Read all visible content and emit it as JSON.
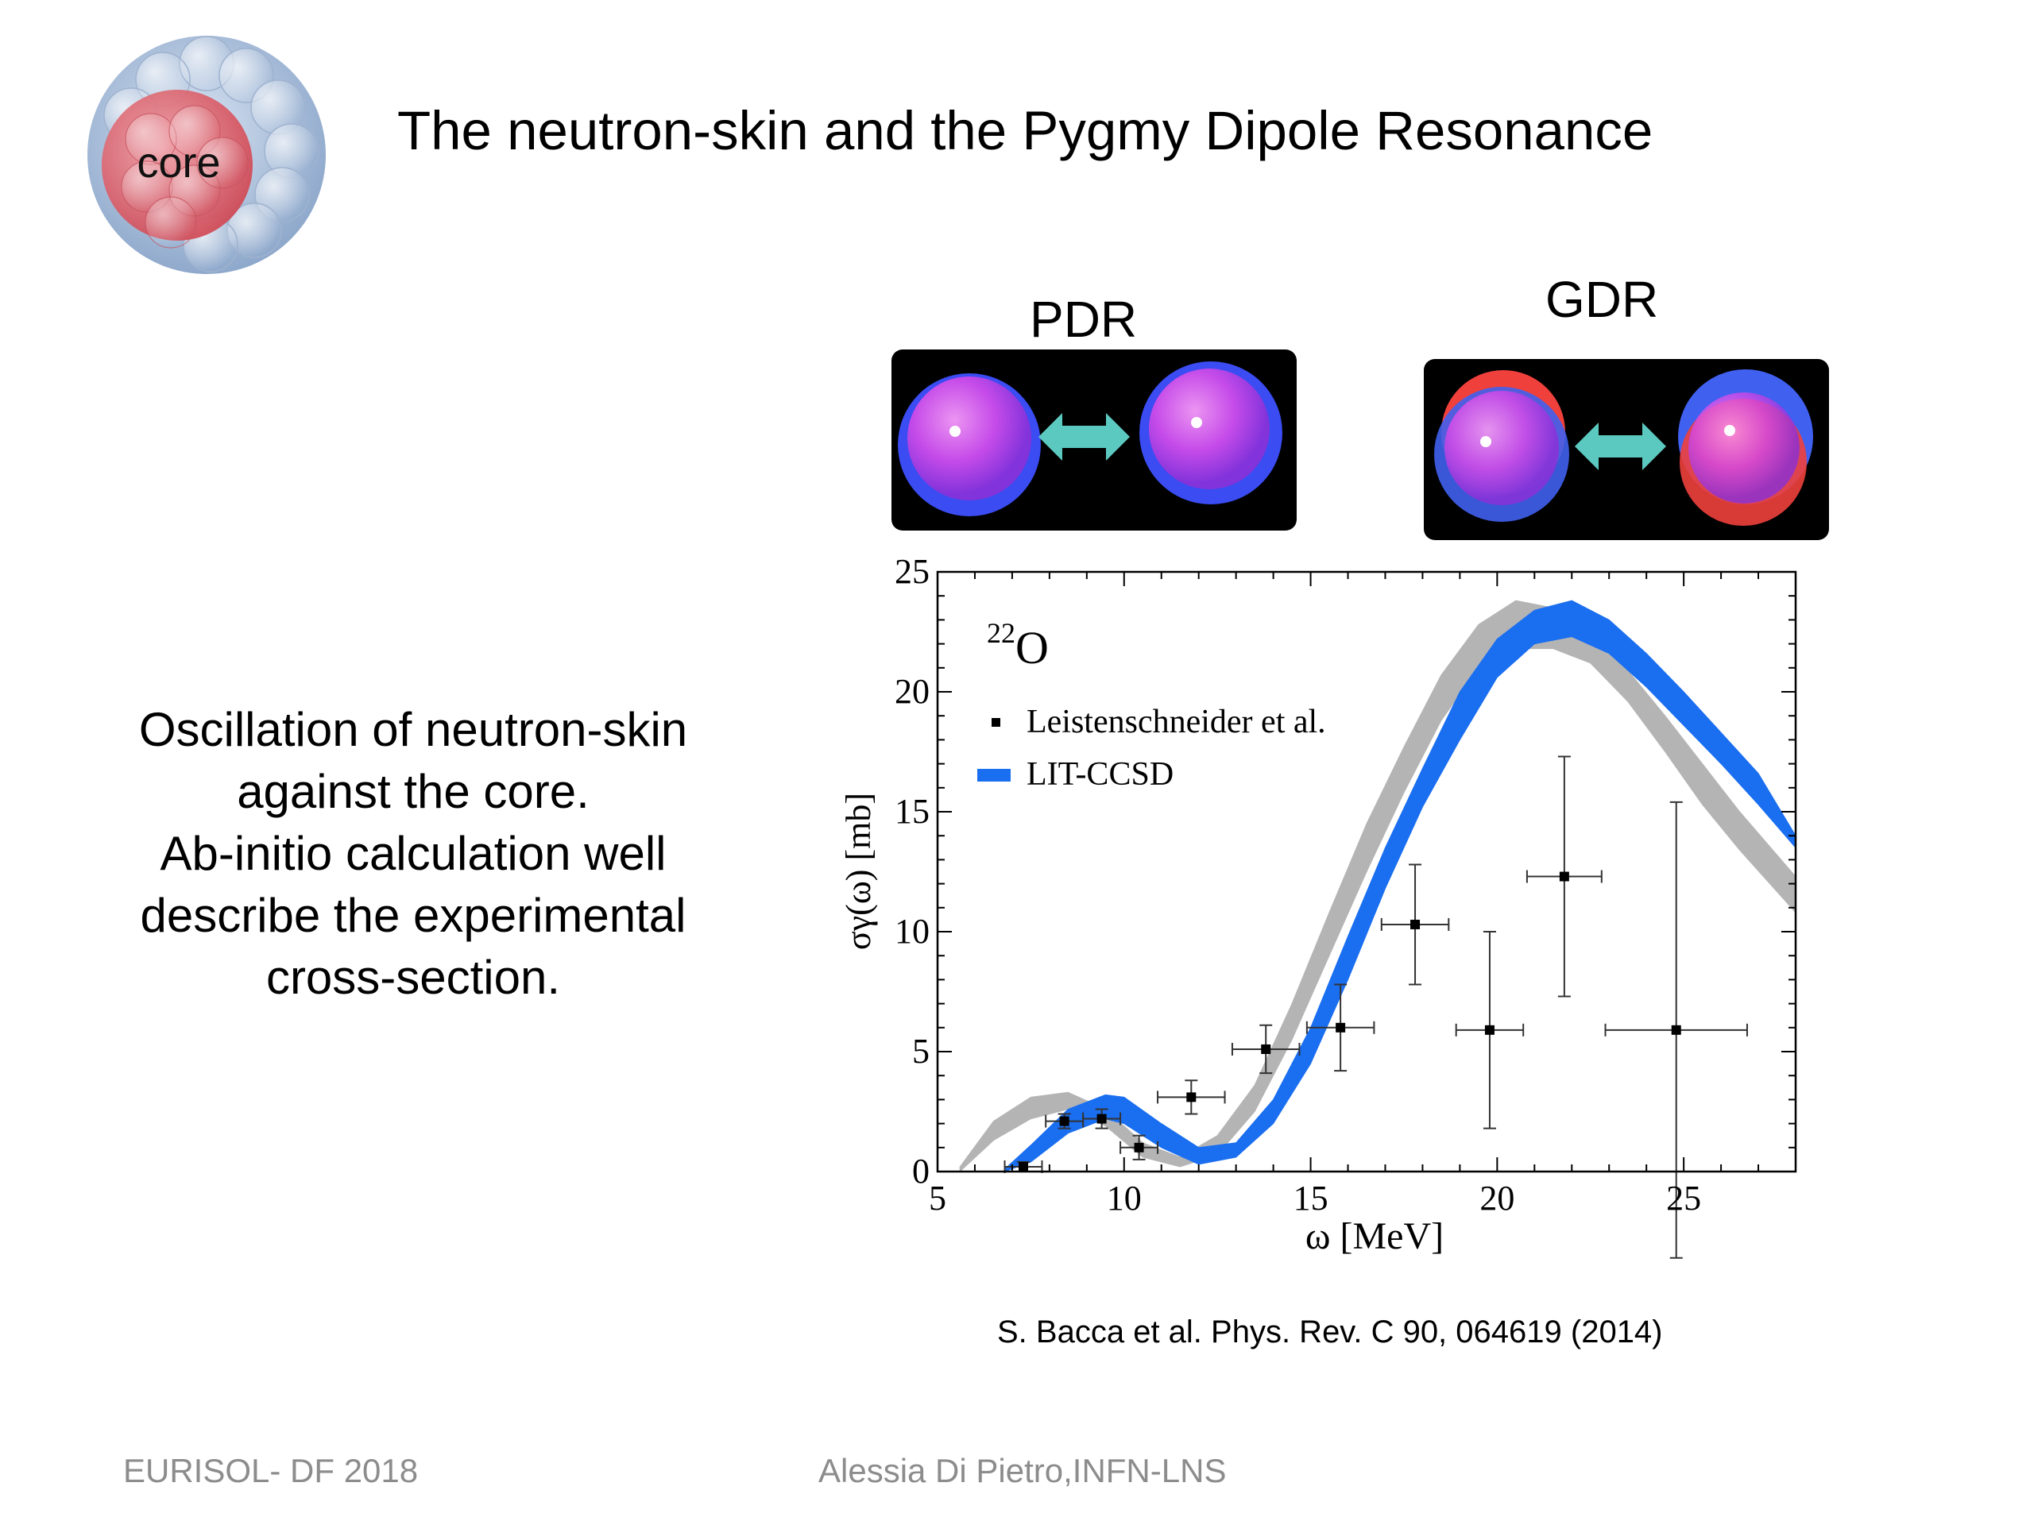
{
  "slide": {
    "title": "The neutron-skin and the Pygmy Dipole Resonance",
    "logo_label": "core",
    "modes": [
      {
        "label": "PDR"
      },
      {
        "label": "GDR"
      }
    ],
    "description_lines": [
      "Oscillation of neutron-skin",
      "against the core.",
      "Ab-initio calculation well",
      "describe the experimental",
      "cross-section."
    ],
    "reference": "S. Bacca et al. Phys. Rev. C 90, 064619 (2014)",
    "footer_left": "EURISOL- DF 2018",
    "footer_center": "Alessia Di Pietro,INFN-LNS"
  },
  "colors": {
    "grey_band": "#b4b4b4",
    "blue_band": "#1a6ef0",
    "arrow": "#5cc9c0",
    "core_red": "#e05a63",
    "skin_blue": "#a9c0dd"
  },
  "chart_data": {
    "type": "line",
    "annotation": "22O",
    "annotation_mass": "22",
    "annotation_element": "O",
    "xlabel": "ω [MeV]",
    "ylabel": "σγ(ω) [mb]",
    "xlim": [
      5,
      28
    ],
    "ylim": [
      0,
      25
    ],
    "xticks": [
      5,
      10,
      15,
      20,
      25
    ],
    "yticks": [
      0,
      5,
      10,
      15,
      20,
      25
    ],
    "legend": [
      {
        "label": "Leistenschneider et al.",
        "kind": "points"
      },
      {
        "label": "LIT-CCSD",
        "kind": "band",
        "color": "#1a6ef0"
      }
    ],
    "legend_position": "top-left",
    "bands": [
      {
        "name": "grey",
        "color": "#b4b4b4",
        "x": [
          5.6,
          6.5,
          7.5,
          8.5,
          9.5,
          10.5,
          11.5,
          12.5,
          13.5,
          14.5,
          15.5,
          16.5,
          17.5,
          18.5,
          19.5,
          20.5,
          21.5,
          22.5,
          23.5,
          24.5,
          25.5,
          26.5,
          28.0
        ],
        "lower": [
          0.0,
          1.3,
          2.2,
          2.6,
          1.9,
          0.6,
          0.2,
          0.7,
          2.5,
          5.5,
          9.0,
          12.5,
          15.8,
          18.8,
          21.0,
          21.8,
          21.8,
          21.2,
          19.6,
          17.5,
          15.3,
          13.4,
          10.8
        ],
        "upper": [
          0.2,
          2.1,
          3.1,
          3.3,
          2.6,
          1.2,
          0.6,
          1.5,
          3.6,
          7.0,
          10.8,
          14.5,
          17.7,
          20.7,
          22.8,
          23.8,
          23.5,
          22.4,
          20.9,
          19.0,
          17.0,
          15.0,
          12.3
        ]
      },
      {
        "name": "LIT-CCSD",
        "color": "#1a6ef0",
        "x": [
          6.8,
          7.5,
          8.5,
          9.5,
          10.0,
          11.0,
          12.0,
          13.0,
          14.0,
          15.0,
          16.0,
          17.0,
          18.0,
          19.0,
          20.0,
          21.0,
          22.0,
          23.0,
          24.0,
          25.0,
          26.0,
          27.0,
          28.0
        ],
        "lower": [
          0.0,
          0.4,
          1.6,
          2.2,
          2.0,
          1.0,
          0.3,
          0.6,
          2.0,
          4.5,
          8.0,
          11.8,
          15.2,
          18.0,
          20.6,
          22.0,
          22.3,
          21.6,
          20.2,
          18.6,
          17.0,
          15.3,
          13.5
        ],
        "upper": [
          0.1,
          1.1,
          2.6,
          3.2,
          3.1,
          2.0,
          1.0,
          1.2,
          3.0,
          6.0,
          9.8,
          13.5,
          16.8,
          20.0,
          22.2,
          23.4,
          23.8,
          23.0,
          21.6,
          20.0,
          18.3,
          16.6,
          14.0
        ]
      }
    ],
    "points": [
      {
        "x": 7.3,
        "y": 0.2,
        "xerr": 0.5,
        "yerr": 0.2
      },
      {
        "x": 8.4,
        "y": 2.1,
        "xerr": 0.5,
        "yerr": 0.3
      },
      {
        "x": 9.4,
        "y": 2.2,
        "xerr": 0.5,
        "yerr": 0.4
      },
      {
        "x": 10.4,
        "y": 1.0,
        "xerr": 0.5,
        "yerr": 0.5
      },
      {
        "x": 11.8,
        "y": 3.1,
        "xerr": 0.9,
        "yerr": 0.7
      },
      {
        "x": 13.8,
        "y": 5.1,
        "xerr": 0.9,
        "yerr": 1.0
      },
      {
        "x": 15.8,
        "y": 6.0,
        "xerr": 0.9,
        "yerr": 1.8
      },
      {
        "x": 17.8,
        "y": 10.3,
        "xerr": 0.9,
        "yerr": 2.5
      },
      {
        "x": 19.8,
        "y": 5.9,
        "xerr": 0.9,
        "yerr": 4.1
      },
      {
        "x": 21.8,
        "y": 12.3,
        "xerr": 1.0,
        "yerr": 5.0
      },
      {
        "x": 24.8,
        "y": 5.9,
        "xerr": 1.9,
        "yerr": 9.5
      }
    ]
  }
}
